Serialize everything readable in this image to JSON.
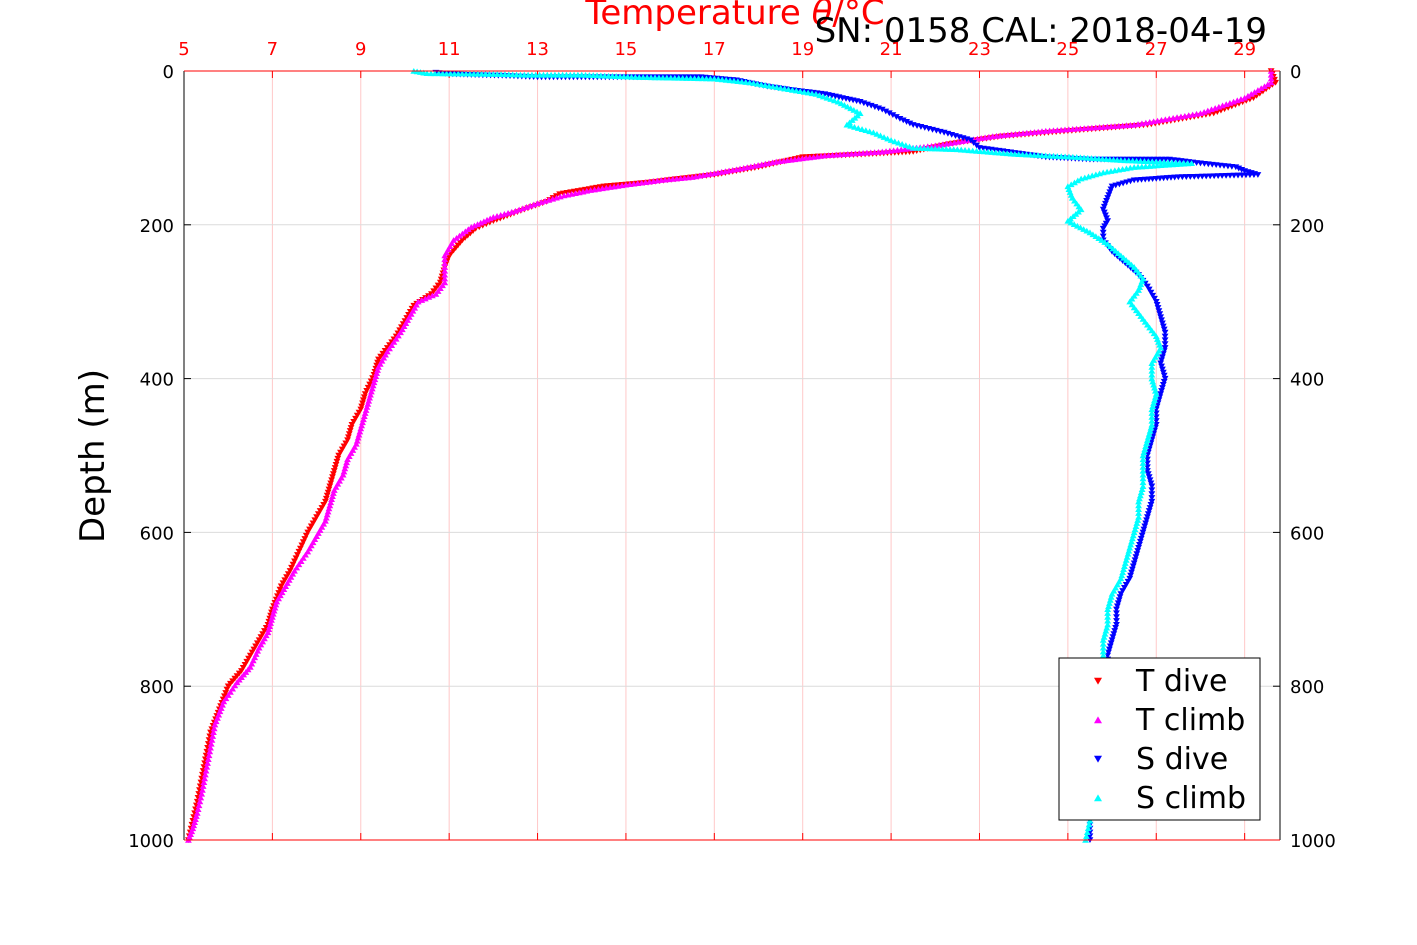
{
  "header": {
    "title_prefix": "Temperature ",
    "title_theta": "θ",
    "title_suffix": "/°C",
    "serial_cal": "SN: 0158  CAL: 2018-04-19"
  },
  "colors": {
    "temperature_axis": "#ff0000",
    "t_dive": "#ff0000",
    "t_climb": "#ff00ff",
    "s_dive": "#0000ff",
    "s_climb": "#00ffff"
  },
  "chart_data": {
    "type": "scatter",
    "title": "Temperature θ/°C",
    "xlabel": "Temperature θ/°C",
    "ylabel": "Depth (m)",
    "x_ticks": [
      5,
      7,
      9,
      11,
      13,
      15,
      17,
      19,
      21,
      23,
      25,
      27,
      29
    ],
    "y_ticks": [
      0,
      200,
      400,
      600,
      800,
      1000
    ],
    "xlim": [
      5,
      29.8
    ],
    "ylim": [
      1000,
      0
    ],
    "y_reversed": true,
    "grid": true,
    "legend_position": "bottom-right",
    "series": [
      {
        "name": "T dive",
        "color": "#ff0000",
        "marker": "triangle-down",
        "points": [
          [
            29.6,
            0
          ],
          [
            29.7,
            15
          ],
          [
            29.2,
            35
          ],
          [
            28.3,
            55
          ],
          [
            26.8,
            70
          ],
          [
            25.0,
            78
          ],
          [
            23.5,
            85
          ],
          [
            22.3,
            95
          ],
          [
            21.5,
            105
          ],
          [
            20.5,
            108
          ],
          [
            19.0,
            112
          ],
          [
            18.0,
            125
          ],
          [
            17.0,
            135
          ],
          [
            16.2,
            140
          ],
          [
            15.5,
            145
          ],
          [
            14.5,
            150
          ],
          [
            13.5,
            160
          ],
          [
            13.2,
            170
          ],
          [
            12.7,
            180
          ],
          [
            12.0,
            195
          ],
          [
            11.6,
            205
          ],
          [
            11.3,
            220
          ],
          [
            11.0,
            240
          ],
          [
            10.9,
            255
          ],
          [
            10.8,
            275
          ],
          [
            10.6,
            290
          ],
          [
            10.2,
            305
          ],
          [
            10.0,
            325
          ],
          [
            9.8,
            345
          ],
          [
            9.6,
            360
          ],
          [
            9.4,
            375
          ],
          [
            9.3,
            395
          ],
          [
            9.1,
            420
          ],
          [
            9.0,
            440
          ],
          [
            8.8,
            460
          ],
          [
            8.7,
            480
          ],
          [
            8.5,
            500
          ],
          [
            8.4,
            520
          ],
          [
            8.3,
            540
          ],
          [
            8.2,
            560
          ],
          [
            8.0,
            580
          ],
          [
            7.8,
            600
          ],
          [
            7.6,
            625
          ],
          [
            7.4,
            650
          ],
          [
            7.2,
            670
          ],
          [
            7.0,
            700
          ],
          [
            6.9,
            720
          ],
          [
            6.7,
            740
          ],
          [
            6.5,
            760
          ],
          [
            6.3,
            780
          ],
          [
            6.0,
            800
          ],
          [
            5.8,
            830
          ],
          [
            5.6,
            860
          ],
          [
            5.5,
            890
          ],
          [
            5.4,
            920
          ],
          [
            5.3,
            950
          ],
          [
            5.2,
            975
          ],
          [
            5.1,
            1000
          ]
        ]
      },
      {
        "name": "T climb",
        "color": "#ff00ff",
        "marker": "triangle-up",
        "points": [
          [
            29.6,
            0
          ],
          [
            29.6,
            15
          ],
          [
            29.0,
            35
          ],
          [
            28.0,
            55
          ],
          [
            26.5,
            70
          ],
          [
            24.5,
            78
          ],
          [
            23.3,
            85
          ],
          [
            22.0,
            97
          ],
          [
            20.8,
            105
          ],
          [
            19.5,
            110
          ],
          [
            18.4,
            118
          ],
          [
            17.5,
            128
          ],
          [
            16.5,
            138
          ],
          [
            15.8,
            142
          ],
          [
            15.0,
            148
          ],
          [
            14.2,
            155
          ],
          [
            13.6,
            162
          ],
          [
            13.0,
            172
          ],
          [
            12.5,
            182
          ],
          [
            12.0,
            190
          ],
          [
            11.5,
            203
          ],
          [
            11.1,
            220
          ],
          [
            10.9,
            240
          ],
          [
            10.9,
            260
          ],
          [
            10.9,
            275
          ],
          [
            10.7,
            290
          ],
          [
            10.3,
            300
          ],
          [
            10.1,
            320
          ],
          [
            9.9,
            340
          ],
          [
            9.6,
            365
          ],
          [
            9.4,
            385
          ],
          [
            9.3,
            405
          ],
          [
            9.2,
            425
          ],
          [
            9.1,
            445
          ],
          [
            9.0,
            465
          ],
          [
            8.9,
            485
          ],
          [
            8.7,
            505
          ],
          [
            8.6,
            525
          ],
          [
            8.4,
            545
          ],
          [
            8.3,
            565
          ],
          [
            8.2,
            585
          ],
          [
            8.0,
            605
          ],
          [
            7.8,
            625
          ],
          [
            7.5,
            650
          ],
          [
            7.3,
            670
          ],
          [
            7.1,
            690
          ],
          [
            7.0,
            710
          ],
          [
            6.9,
            730
          ],
          [
            6.7,
            750
          ],
          [
            6.5,
            775
          ],
          [
            6.2,
            795
          ],
          [
            5.9,
            820
          ],
          [
            5.7,
            850
          ],
          [
            5.6,
            880
          ],
          [
            5.5,
            910
          ],
          [
            5.4,
            940
          ],
          [
            5.3,
            965
          ],
          [
            5.2,
            985
          ],
          [
            5.1,
            1000
          ]
        ]
      },
      {
        "name": "S dive",
        "color": "#0000ff",
        "marker": "triangle-down",
        "points": [
          [
            10.7,
            2
          ],
          [
            11.0,
            4
          ],
          [
            11.5,
            5
          ],
          [
            12.2,
            6
          ],
          [
            13.0,
            8
          ],
          [
            16.7,
            8
          ],
          [
            17.5,
            12
          ],
          [
            18.2,
            20
          ],
          [
            18.8,
            25
          ],
          [
            19.5,
            30
          ],
          [
            20.3,
            40
          ],
          [
            20.8,
            50
          ],
          [
            21.2,
            62
          ],
          [
            21.5,
            70
          ],
          [
            22.2,
            80
          ],
          [
            22.8,
            90
          ],
          [
            23.0,
            100
          ],
          [
            24.5,
            112
          ],
          [
            25.5,
            115
          ],
          [
            26.5,
            115
          ],
          [
            27.3,
            115
          ],
          [
            28.0,
            120
          ],
          [
            28.8,
            125
          ],
          [
            29.0,
            130
          ],
          [
            29.3,
            135
          ],
          [
            27.5,
            138
          ],
          [
            26.5,
            142
          ],
          [
            26.0,
            150
          ],
          [
            25.9,
            165
          ],
          [
            25.8,
            180
          ],
          [
            25.9,
            195
          ],
          [
            25.8,
            205
          ],
          [
            25.8,
            220
          ],
          [
            26.0,
            235
          ],
          [
            26.3,
            250
          ],
          [
            26.6,
            265
          ],
          [
            26.8,
            280
          ],
          [
            27.0,
            300
          ],
          [
            27.1,
            320
          ],
          [
            27.2,
            340
          ],
          [
            27.2,
            360
          ],
          [
            27.1,
            380
          ],
          [
            27.2,
            400
          ],
          [
            27.1,
            420
          ],
          [
            27.0,
            440
          ],
          [
            27.0,
            460
          ],
          [
            26.9,
            480
          ],
          [
            26.8,
            500
          ],
          [
            26.8,
            520
          ],
          [
            26.9,
            540
          ],
          [
            26.9,
            560
          ],
          [
            26.8,
            580
          ],
          [
            26.7,
            600
          ],
          [
            26.6,
            620
          ],
          [
            26.5,
            640
          ],
          [
            26.4,
            660
          ],
          [
            26.2,
            680
          ],
          [
            26.1,
            700
          ],
          [
            26.1,
            720
          ],
          [
            26.0,
            740
          ],
          [
            25.9,
            760
          ],
          [
            25.9,
            780
          ],
          [
            25.8,
            800
          ],
          [
            25.8,
            830
          ],
          [
            25.7,
            860
          ],
          [
            25.7,
            890
          ],
          [
            25.6,
            920
          ],
          [
            25.6,
            950
          ],
          [
            25.5,
            975
          ],
          [
            25.5,
            1000
          ]
        ]
      },
      {
        "name": "S climb",
        "color": "#00ffff",
        "marker": "triangle-up",
        "points": [
          [
            10.2,
            0
          ],
          [
            10.5,
            3
          ],
          [
            12.0,
            4
          ],
          [
            12.7,
            5
          ],
          [
            14.0,
            5
          ],
          [
            15.3,
            8
          ],
          [
            17.0,
            10
          ],
          [
            17.8,
            15
          ],
          [
            18.5,
            22
          ],
          [
            19.3,
            30
          ],
          [
            19.8,
            40
          ],
          [
            20.3,
            55
          ],
          [
            20.0,
            70
          ],
          [
            20.6,
            80
          ],
          [
            21.0,
            90
          ],
          [
            21.5,
            100
          ],
          [
            22.5,
            102
          ],
          [
            23.8,
            108
          ],
          [
            25.2,
            112
          ],
          [
            26.2,
            116
          ],
          [
            27.0,
            118
          ],
          [
            27.8,
            120
          ],
          [
            26.5,
            125
          ],
          [
            25.8,
            132
          ],
          [
            25.3,
            140
          ],
          [
            25.0,
            150
          ],
          [
            25.1,
            165
          ],
          [
            25.3,
            180
          ],
          [
            25.0,
            195
          ],
          [
            25.5,
            210
          ],
          [
            25.9,
            225
          ],
          [
            26.2,
            240
          ],
          [
            26.5,
            255
          ],
          [
            26.7,
            270
          ],
          [
            26.6,
            285
          ],
          [
            26.4,
            300
          ],
          [
            26.6,
            315
          ],
          [
            26.8,
            330
          ],
          [
            27.0,
            345
          ],
          [
            27.1,
            360
          ],
          [
            26.9,
            380
          ],
          [
            26.9,
            400
          ],
          [
            27.0,
            420
          ],
          [
            26.9,
            440
          ],
          [
            26.9,
            460
          ],
          [
            26.8,
            480
          ],
          [
            26.7,
            500
          ],
          [
            26.7,
            520
          ],
          [
            26.7,
            540
          ],
          [
            26.6,
            560
          ],
          [
            26.6,
            580
          ],
          [
            26.5,
            600
          ],
          [
            26.4,
            620
          ],
          [
            26.3,
            640
          ],
          [
            26.2,
            660
          ],
          [
            26.0,
            680
          ],
          [
            25.9,
            700
          ],
          [
            25.9,
            720
          ],
          [
            25.8,
            740
          ],
          [
            25.8,
            760
          ],
          [
            25.7,
            780
          ],
          [
            25.7,
            800
          ],
          [
            25.7,
            830
          ],
          [
            25.6,
            860
          ],
          [
            25.6,
            890
          ],
          [
            25.6,
            920
          ],
          [
            25.5,
            950
          ],
          [
            25.5,
            975
          ],
          [
            25.4,
            1000
          ]
        ]
      }
    ]
  }
}
